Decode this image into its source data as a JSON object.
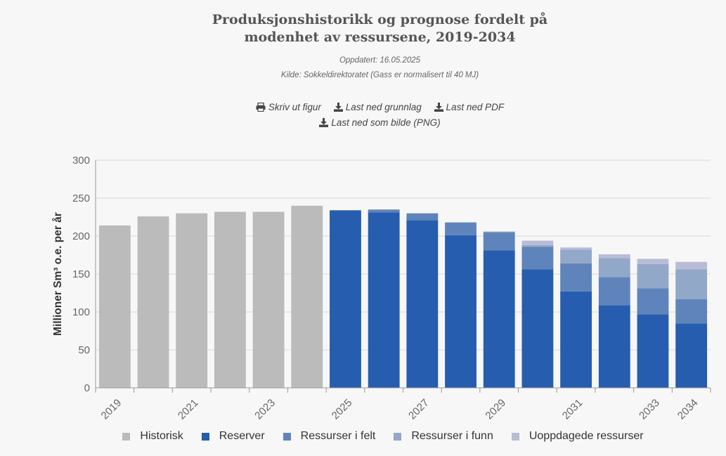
{
  "header": {
    "title_line1": "Produksjonshistorikk og prognose fordelt på",
    "title_line2": "modenhet av ressursene, 2019-2034",
    "updated": "Oppdatert: 16.05.2025",
    "source": "Kilde: Sokkeldirektoratet (Gass er normalisert til 40 MJ)"
  },
  "actions": {
    "print_label": "Skriv ut figur",
    "download_data_label": "Last ned grunnlag",
    "download_pdf_label": "Last ned PDF",
    "download_png_label": "Last ned som bilde (PNG)"
  },
  "legend": {
    "items": [
      {
        "label": "Historisk",
        "color": "#bbbbbb"
      },
      {
        "label": "Reserver",
        "color": "#265daf"
      },
      {
        "label": "Ressurser i felt",
        "color": "#5f84bb"
      },
      {
        "label": "Ressurser i funn",
        "color": "#92a8c8"
      },
      {
        "label": "Uoppdagede ressurser",
        "color": "#b8bcd6"
      }
    ]
  },
  "chart_data": {
    "type": "bar",
    "stacked": true,
    "title": "Produksjonshistorikk og prognose fordelt på modenhet av ressursene, 2019-2034",
    "xlabel": "",
    "ylabel": "Millioner Sm³ o.e. per år",
    "ylim": [
      0,
      300
    ],
    "yticks": [
      0,
      50,
      100,
      150,
      200,
      250,
      300
    ],
    "categories": [
      "2019",
      "2020",
      "2021",
      "2022",
      "2023",
      "2024",
      "2025",
      "2026",
      "2027",
      "2028",
      "2029",
      "2030",
      "2031",
      "2032",
      "2033",
      "2034"
    ],
    "xtick_labels": [
      "2019",
      "2021",
      "2023",
      "2025",
      "2027",
      "2029",
      "2031",
      "2033",
      "2034"
    ],
    "grid": true,
    "legend_position": "bottom",
    "series": [
      {
        "name": "Historisk",
        "color": "#bbbbbb",
        "values": [
          214,
          226,
          230,
          232,
          232,
          240,
          0,
          0,
          0,
          0,
          0,
          0,
          0,
          0,
          0,
          0
        ]
      },
      {
        "name": "Reserver",
        "color": "#265daf",
        "values": [
          0,
          0,
          0,
          0,
          0,
          0,
          234,
          231,
          221,
          201,
          181,
          156,
          127,
          109,
          97,
          85
        ]
      },
      {
        "name": "Ressurser i felt",
        "color": "#5f84bb",
        "values": [
          0,
          0,
          0,
          0,
          0,
          0,
          0,
          4,
          9,
          17,
          24,
          30,
          37,
          37,
          34,
          32
        ]
      },
      {
        "name": "Ressurser i funn",
        "color": "#92a8c8",
        "values": [
          0,
          0,
          0,
          0,
          0,
          0,
          0,
          0,
          0,
          0,
          1,
          2,
          18,
          25,
          32,
          39
        ]
      },
      {
        "name": "Uoppdagede ressurser",
        "color": "#b8bcd6",
        "values": [
          0,
          0,
          0,
          0,
          0,
          0,
          0,
          0,
          0,
          0,
          0,
          6,
          3,
          5,
          7,
          10
        ]
      }
    ]
  }
}
